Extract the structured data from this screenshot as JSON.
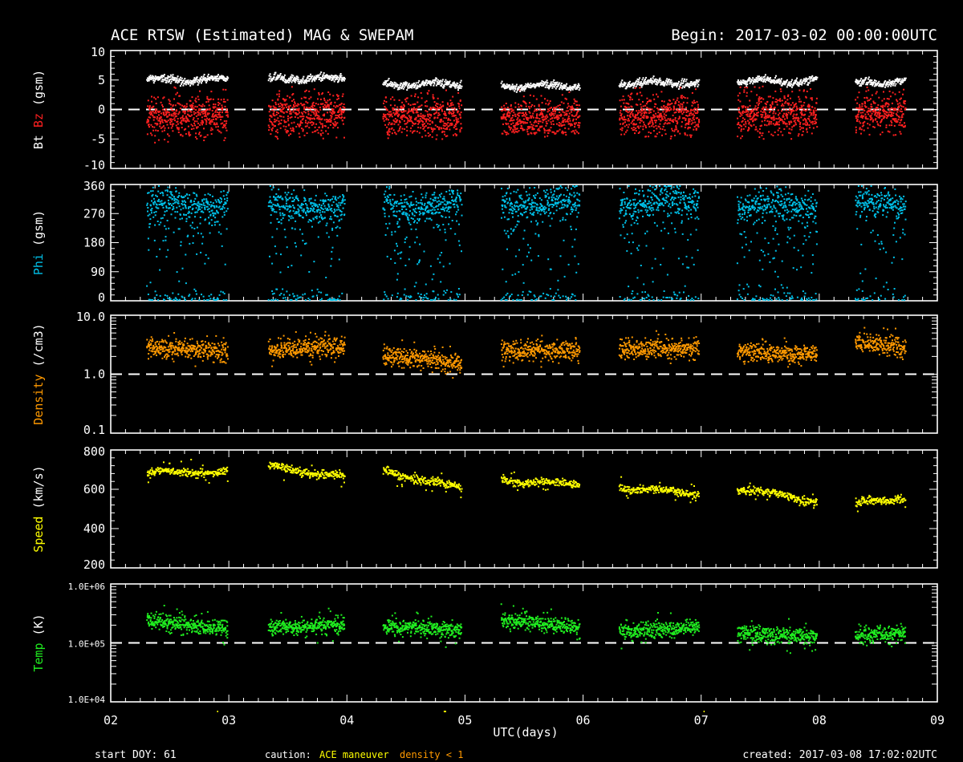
{
  "header": {
    "title": "ACE RTSW (Estimated) MAG & SWEPAM",
    "begin": "Begin: 2017-03-02 00:00:00UTC"
  },
  "footer": {
    "start_doy": "start DOY:  61",
    "caution_label": "caution:",
    "caution_maneuver": "ACE maneuver",
    "caution_density": "density < 1",
    "created": "created: 2017-03-08 17:02:02UTC",
    "xlabel": "UTC(days)"
  },
  "colors": {
    "background": "#000000",
    "axes": "#ffffff",
    "bt": "#ffffff",
    "bz": "#ff2020",
    "phi": "#00c0e8",
    "density": "#ff9900",
    "speed": "#ffff00",
    "temp": "#20ee20",
    "maneuver": "#ffff00"
  },
  "chart_data": [
    {
      "type": "scatter",
      "panel": "mag",
      "ylabel_parts": [
        "Bt",
        "Bz",
        "(gsm)"
      ],
      "ylim": [
        -10,
        10
      ],
      "yticks": [
        10,
        5,
        0,
        -5,
        -10
      ],
      "ytick_labels": [
        "10",
        "5",
        "0",
        "-5",
        "-10"
      ],
      "reference_line": 0,
      "xlim": [
        2,
        9
      ],
      "xticks": [
        "02",
        "03",
        "04",
        "05",
        "06",
        "07",
        "08",
        "09"
      ],
      "data_segments_days": [
        [
          2.3,
          2.98
        ],
        [
          3.33,
          3.97
        ],
        [
          4.3,
          4.96
        ],
        [
          5.3,
          5.96
        ],
        [
          6.3,
          6.97
        ],
        [
          7.3,
          7.97
        ],
        [
          8.3,
          8.72
        ]
      ],
      "series": [
        {
          "name": "Bt",
          "mean": [
            5.0,
            5.2,
            4.3,
            4.0,
            4.5,
            4.8,
            4.5
          ],
          "spread": 0.6
        },
        {
          "name": "Bz",
          "mean": [
            -1.0,
            -0.5,
            -1.0,
            -1.5,
            -0.8,
            -0.6,
            -0.5
          ],
          "spread": 3.0
        }
      ]
    },
    {
      "type": "scatter",
      "panel": "phi",
      "ylabel_parts": [
        "Phi",
        "(gsm)"
      ],
      "ylim": [
        0,
        360
      ],
      "yticks": [
        360,
        270,
        180,
        90,
        0
      ],
      "ytick_labels": [
        "360",
        "270",
        "180",
        "90",
        "0"
      ],
      "xlim": [
        2,
        9
      ],
      "series": [
        {
          "name": "Phi",
          "main_center": [
            305,
            300,
            300,
            305,
            310,
            300,
            310
          ],
          "main_spread": 45
        }
      ]
    },
    {
      "type": "scatter",
      "panel": "density",
      "scale": "log",
      "ylabel_parts": [
        "Density",
        "(/cm3)"
      ],
      "ylim": [
        0.1,
        10
      ],
      "yticks": [
        10,
        1,
        0.1
      ],
      "ytick_labels": [
        "10.0",
        "1.0",
        "0.1"
      ],
      "reference_line": 1,
      "xlim": [
        2,
        9
      ],
      "series": [
        {
          "name": "Density",
          "start": [
            3.0,
            2.6,
            2.2,
            2.6,
            2.8,
            2.5,
            3.5
          ],
          "end": [
            2.5,
            3.0,
            1.5,
            2.5,
            2.8,
            2.2,
            3.0
          ]
        }
      ]
    },
    {
      "type": "scatter",
      "panel": "speed",
      "ylabel_parts": [
        "Speed",
        "(km/s)"
      ],
      "ylim": [
        200,
        800
      ],
      "yticks": [
        800,
        600,
        400,
        200
      ],
      "ytick_labels": [
        "800",
        "600",
        "400",
        "200"
      ],
      "xlim": [
        2,
        9
      ],
      "series": [
        {
          "name": "Speed",
          "start": [
            690,
            720,
            695,
            650,
            615,
            610,
            530
          ],
          "end": [
            690,
            665,
            610,
            625,
            580,
            545,
            560
          ]
        }
      ]
    },
    {
      "type": "scatter",
      "panel": "temp",
      "scale": "log",
      "ylabel_parts": [
        "Temp",
        "(K)"
      ],
      "ylim": [
        10000,
        1000000
      ],
      "yticks": [
        1000000,
        100000,
        10000
      ],
      "ytick_labels": [
        "1.0E+06",
        "1.0E+05",
        "1.0E+04"
      ],
      "reference_line": 100000,
      "xlim": [
        2,
        9
      ],
      "series": [
        {
          "name": "Temp",
          "start": [
            240000,
            190000,
            190000,
            250000,
            160000,
            150000,
            140000
          ],
          "end": [
            180000,
            210000,
            170000,
            180000,
            190000,
            130000,
            150000
          ]
        }
      ]
    }
  ]
}
